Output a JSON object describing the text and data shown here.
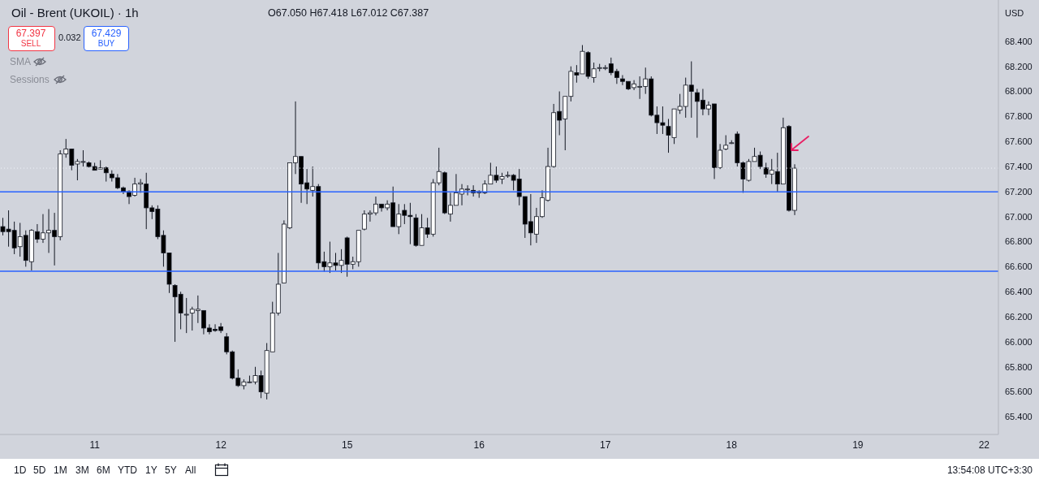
{
  "chart_data": {
    "type": "candlestick",
    "title": "Oil - Brent (UKOIL) · 1h",
    "subtitle": "O67.050 H67.418 L67.012 C67.387",
    "annotations": [
      "67.397",
      "SELL",
      "0.032",
      "67.429",
      "BUY",
      "SMA",
      "Sessions",
      "USD",
      "1D",
      "5D",
      "1M",
      "3M",
      "6M",
      "YTD",
      "1Y",
      "5Y",
      "All",
      "13:54:08 UTC+3:30"
    ],
    "categories": [
      null,
      null,
      null,
      null,
      null,
      null,
      null,
      null,
      null,
      null,
      null,
      null,
      null,
      null,
      null,
      null,
      "11",
      null,
      null,
      null,
      null,
      null,
      null,
      null,
      null,
      null,
      null,
      null,
      null,
      null,
      null,
      null,
      null,
      null,
      null,
      null,
      null,
      null,
      "12",
      null,
      null,
      null,
      null,
      null,
      null,
      null,
      null,
      null,
      null,
      null,
      null,
      null,
      null,
      null,
      null,
      null,
      null,
      null,
      null,
      null,
      "15",
      null,
      null,
      null,
      null,
      null,
      null,
      null,
      null,
      null,
      null,
      null,
      null,
      null,
      null,
      null,
      null,
      null,
      null,
      null,
      null,
      null,
      null,
      "16",
      null,
      null,
      null,
      null,
      null,
      null,
      null,
      null,
      null,
      null,
      null,
      null,
      null,
      null,
      null,
      null,
      null,
      null,
      null,
      null,
      null,
      "17",
      null,
      null,
      null,
      null,
      null,
      null,
      null,
      null,
      null,
      null,
      null,
      null,
      null,
      null,
      null,
      null,
      null,
      null,
      null,
      null,
      null,
      "18",
      null,
      null,
      null,
      null,
      null,
      null,
      null,
      null,
      null,
      null,
      null,
      null,
      null,
      null,
      null,
      null,
      null,
      null,
      null,
      null,
      null,
      "19",
      null,
      null,
      null,
      null,
      null,
      null,
      null,
      null,
      null,
      null,
      null,
      null,
      null,
      null,
      null,
      null,
      null,
      null,
      null,
      null,
      null,
      "22",
      null,
      null
    ],
    "ohlc": [
      [
        66.92,
        66.99,
        66.85,
        66.88
      ],
      [
        66.9,
        67.05,
        66.76,
        66.88
      ],
      [
        66.89,
        66.96,
        66.7,
        66.75
      ],
      [
        66.76,
        66.95,
        66.68,
        66.84
      ],
      [
        66.85,
        66.89,
        66.6,
        66.65
      ],
      [
        66.64,
        66.9,
        66.57,
        66.89
      ],
      [
        66.88,
        66.94,
        66.79,
        66.82
      ],
      [
        66.82,
        67.02,
        66.79,
        66.87
      ],
      [
        66.87,
        67.06,
        66.71,
        66.89
      ],
      [
        66.89,
        67.03,
        66.61,
        66.84
      ],
      [
        66.84,
        67.53,
        66.81,
        67.5
      ],
      [
        67.5,
        67.62,
        67.47,
        67.54
      ],
      [
        67.54,
        67.54,
        67.37,
        67.41
      ],
      [
        67.42,
        67.46,
        67.29,
        67.44
      ],
      [
        67.44,
        67.53,
        67.4,
        67.44
      ],
      [
        67.43,
        67.44,
        67.39,
        67.4
      ],
      [
        67.4,
        67.43,
        67.37,
        67.37
      ],
      [
        67.38,
        67.45,
        67.38,
        67.39
      ],
      [
        67.39,
        67.4,
        67.28,
        67.35
      ],
      [
        67.34,
        67.37,
        67.28,
        67.31
      ],
      [
        67.31,
        67.34,
        67.22,
        67.23
      ],
      [
        67.23,
        67.24,
        67.18,
        67.2
      ],
      [
        67.2,
        67.21,
        67.1,
        67.16
      ],
      [
        67.17,
        67.31,
        67.16,
        67.26
      ],
      [
        67.26,
        67.3,
        67.19,
        67.27
      ],
      [
        67.26,
        67.35,
        66.9,
        67.07
      ],
      [
        67.07,
        67.09,
        66.98,
        67.04
      ],
      [
        67.06,
        67.09,
        66.82,
        66.84
      ],
      [
        66.85,
        66.89,
        66.6,
        66.71
      ],
      [
        66.71,
        66.71,
        66.39,
        66.46
      ],
      [
        66.45,
        66.46,
        66.0,
        66.36
      ],
      [
        66.38,
        66.4,
        66.1,
        66.23
      ],
      [
        66.22,
        66.35,
        66.07,
        66.22
      ],
      [
        66.23,
        66.28,
        66.09,
        66.26
      ],
      [
        66.25,
        66.37,
        66.15,
        66.26
      ],
      [
        66.25,
        66.25,
        66.06,
        66.11
      ],
      [
        66.11,
        66.14,
        66.06,
        66.08
      ],
      [
        66.1,
        66.14,
        66.08,
        66.09
      ],
      [
        66.12,
        66.15,
        66.07,
        66.09
      ],
      [
        66.04,
        66.07,
        65.9,
        65.92
      ],
      [
        65.92,
        65.93,
        65.7,
        65.71
      ],
      [
        65.71,
        65.78,
        65.64,
        65.65
      ],
      [
        65.65,
        65.7,
        65.62,
        65.68
      ],
      [
        65.68,
        65.73,
        65.67,
        65.68
      ],
      [
        65.68,
        65.8,
        65.66,
        65.73
      ],
      [
        65.73,
        65.77,
        65.55,
        65.6
      ],
      [
        65.59,
        65.99,
        65.54,
        65.93
      ],
      [
        65.92,
        66.32,
        65.92,
        66.23
      ],
      [
        66.23,
        66.71,
        66.21,
        66.46
      ],
      [
        66.47,
        66.97,
        66.47,
        66.94
      ],
      [
        66.91,
        67.43,
        66.9,
        67.43
      ],
      [
        67.43,
        67.92,
        67.34,
        67.48
      ],
      [
        67.48,
        67.48,
        67.11,
        67.26
      ],
      [
        67.27,
        67.38,
        67.1,
        67.22
      ],
      [
        67.21,
        67.4,
        67.16,
        67.24
      ],
      [
        67.24,
        67.26,
        66.58,
        66.63
      ],
      [
        66.64,
        66.72,
        66.56,
        66.6
      ],
      [
        66.6,
        66.8,
        66.55,
        66.63
      ],
      [
        66.63,
        66.71,
        66.57,
        66.61
      ],
      [
        66.61,
        66.74,
        66.55,
        66.65
      ],
      [
        66.83,
        66.84,
        66.52,
        66.62
      ],
      [
        66.62,
        66.68,
        66.58,
        66.64
      ],
      [
        66.64,
        66.89,
        66.6,
        66.89
      ],
      [
        66.9,
        67.05,
        66.89,
        67.02
      ],
      [
        67.02,
        67.05,
        66.96,
        67.03
      ],
      [
        67.03,
        67.16,
        67.01,
        67.1
      ],
      [
        67.1,
        67.1,
        67.04,
        67.07
      ],
      [
        67.07,
        67.13,
        67.05,
        67.1
      ],
      [
        67.11,
        67.24,
        66.92,
        66.92
      ],
      [
        66.92,
        67.1,
        66.86,
        67.02
      ],
      [
        67.05,
        67.1,
        66.94,
        67.01
      ],
      [
        67.01,
        67.11,
        66.78,
        67.0
      ],
      [
        66.99,
        67.02,
        66.76,
        66.77
      ],
      [
        66.77,
        67.02,
        66.77,
        66.91
      ],
      [
        66.91,
        66.99,
        66.83,
        66.86
      ],
      [
        66.86,
        67.3,
        66.84,
        67.27
      ],
      [
        67.27,
        67.55,
        67.25,
        67.36
      ],
      [
        67.35,
        67.36,
        67.02,
        67.03
      ],
      [
        67.02,
        67.19,
        66.96,
        67.09
      ],
      [
        67.09,
        67.34,
        67.09,
        67.19
      ],
      [
        67.18,
        67.26,
        67.09,
        67.22
      ],
      [
        67.22,
        67.25,
        67.17,
        67.22
      ],
      [
        67.21,
        67.25,
        67.16,
        67.19
      ],
      [
        67.19,
        67.21,
        67.15,
        67.2
      ],
      [
        67.19,
        67.29,
        67.18,
        67.26
      ],
      [
        67.26,
        67.43,
        67.26,
        67.33
      ],
      [
        67.33,
        67.4,
        67.27,
        67.29
      ],
      [
        67.3,
        67.35,
        67.26,
        67.32
      ],
      [
        67.33,
        67.36,
        67.31,
        67.33
      ],
      [
        67.33,
        67.34,
        67.21,
        67.29
      ],
      [
        67.3,
        67.38,
        67.09,
        67.16
      ],
      [
        67.16,
        67.16,
        66.83,
        66.94
      ],
      [
        66.96,
        67.18,
        66.77,
        66.87
      ],
      [
        66.86,
        67.07,
        66.79,
        67.0
      ],
      [
        67.0,
        67.21,
        66.99,
        67.15
      ],
      [
        67.13,
        67.55,
        67.12,
        67.4
      ],
      [
        67.4,
        67.9,
        67.39,
        67.83
      ],
      [
        67.84,
        68.0,
        67.65,
        67.77
      ],
      [
        67.78,
        67.96,
        67.53,
        67.96
      ],
      [
        67.96,
        68.2,
        67.92,
        68.16
      ],
      [
        68.15,
        68.21,
        68.07,
        68.13
      ],
      [
        68.14,
        68.37,
        68.14,
        68.32
      ],
      [
        68.31,
        68.32,
        68.1,
        68.12
      ],
      [
        68.11,
        68.23,
        68.07,
        68.18
      ],
      [
        68.19,
        68.22,
        68.16,
        68.19
      ],
      [
        68.19,
        68.21,
        68.17,
        68.19
      ],
      [
        68.22,
        68.27,
        68.13,
        68.15
      ],
      [
        68.16,
        68.18,
        68.06,
        68.11
      ],
      [
        68.1,
        68.13,
        68.05,
        68.08
      ],
      [
        68.08,
        68.08,
        68.01,
        68.02
      ],
      [
        68.03,
        68.09,
        68.01,
        68.06
      ],
      [
        68.04,
        68.12,
        67.94,
        68.04
      ],
      [
        68.04,
        68.19,
        67.98,
        68.1
      ],
      [
        68.1,
        68.12,
        67.8,
        67.81
      ],
      [
        67.81,
        67.88,
        67.66,
        67.75
      ],
      [
        67.75,
        67.88,
        67.66,
        67.73
      ],
      [
        67.72,
        67.78,
        67.51,
        67.65
      ],
      [
        67.63,
        67.86,
        67.58,
        67.86
      ],
      [
        67.85,
        67.98,
        67.82,
        67.88
      ],
      [
        67.88,
        68.11,
        67.79,
        68.05
      ],
      [
        68.05,
        68.24,
        67.79,
        68.0
      ],
      [
        67.99,
        68.02,
        67.63,
        67.92
      ],
      [
        67.93,
        68.02,
        67.81,
        67.86
      ],
      [
        67.86,
        67.92,
        67.81,
        67.89
      ],
      [
        67.9,
        67.9,
        67.3,
        67.39
      ],
      [
        67.39,
        67.58,
        67.38,
        67.53
      ],
      [
        67.54,
        67.65,
        67.53,
        67.57
      ],
      [
        67.59,
        67.61,
        67.58,
        67.59
      ],
      [
        67.66,
        67.68,
        67.4,
        67.43
      ],
      [
        67.43,
        67.44,
        67.19,
        67.3
      ],
      [
        67.29,
        67.46,
        67.28,
        67.44
      ],
      [
        67.44,
        67.55,
        67.44,
        67.48
      ],
      [
        67.49,
        67.52,
        67.38,
        67.4
      ],
      [
        67.39,
        67.43,
        67.31,
        67.34
      ],
      [
        67.34,
        67.46,
        67.26,
        67.37
      ],
      [
        67.36,
        67.51,
        67.2,
        67.26
      ],
      [
        67.26,
        67.79,
        67.26,
        67.71
      ],
      [
        67.72,
        67.73,
        67.04,
        67.05
      ],
      [
        67.05,
        67.418,
        67.012,
        67.387
      ],
      null,
      null,
      null,
      null,
      null,
      null,
      null,
      null,
      null,
      null,
      null,
      null,
      null,
      null,
      null,
      null,
      null,
      null,
      null,
      null,
      null,
      null,
      null,
      null,
      null,
      null,
      null,
      null,
      null,
      null,
      null,
      null,
      null,
      null,
      null
    ],
    "ylim": [
      65.26,
      68.73
    ],
    "yticks": [
      {
        "value": 65.4,
        "label": "65.400"
      },
      {
        "value": 65.6,
        "label": "65.600"
      },
      {
        "value": 65.8,
        "label": "65.800"
      },
      {
        "value": 66.0,
        "label": "66.000"
      },
      {
        "value": 66.2,
        "label": "66.200"
      },
      {
        "value": 66.4,
        "label": "66.400"
      },
      {
        "value": 66.6,
        "label": "66.600"
      },
      {
        "value": 66.8,
        "label": "66.800"
      },
      {
        "value": 67.0,
        "label": "67.000"
      },
      {
        "value": 67.2,
        "label": "67.200"
      },
      {
        "value": 67.4,
        "label": "67.400"
      },
      {
        "value": 67.6,
        "label": "67.600"
      },
      {
        "value": 67.8,
        "label": "67.800"
      },
      {
        "value": 68.0,
        "label": "68.000"
      },
      {
        "value": 68.2,
        "label": "68.200"
      },
      {
        "value": 68.4,
        "label": "68.400"
      }
    ],
    "ref_lines": [
      {
        "axis": "y",
        "value": 66.564,
        "color": "#2962ff",
        "line_style": "solid"
      },
      {
        "axis": "y",
        "value": 67.197,
        "color": "#2962ff",
        "line_style": "solid"
      },
      {
        "axis": "y",
        "value": 67.387,
        "color": "#f0f3fa",
        "line_style": "dotted"
      }
    ],
    "line_style": "solid"
  }
}
